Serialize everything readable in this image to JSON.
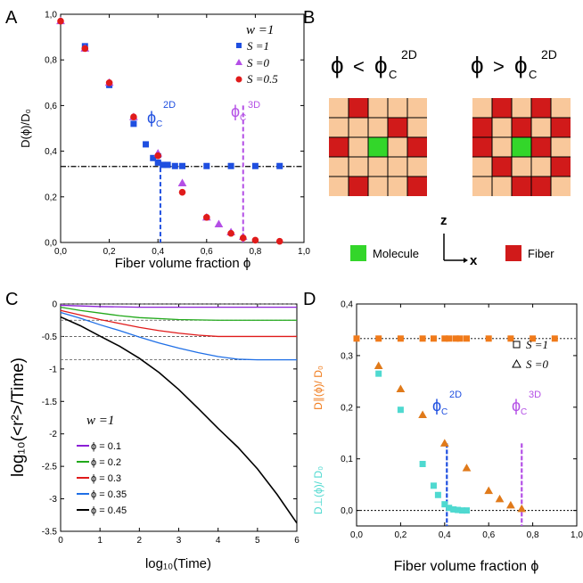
{
  "figure": {
    "panel_labels": {
      "A": "A",
      "B": "B",
      "C": "C",
      "D": "D"
    }
  },
  "chart_data": [
    {
      "panel": "A",
      "type": "scatter",
      "xlabel": "Fiber volume fraction ϕ",
      "ylabel": "D(ϕ)/D₀",
      "xlim": [
        0,
        1
      ],
      "ylim": [
        0,
        1
      ],
      "xticks": [
        "0,0",
        "0,2",
        "0,4",
        "0,6",
        "0,8",
        "1,0"
      ],
      "xtick_values": [
        0,
        0.2,
        0.4,
        0.6,
        0.8,
        1.0
      ],
      "yticks": [
        "0,0",
        "0,2",
        "0,4",
        "0,6",
        "0,8",
        "1,0"
      ],
      "ytick_values": [
        0,
        0.2,
        0.4,
        0.6,
        0.8,
        1.0
      ],
      "legend_title": "w =1",
      "series": [
        {
          "name": "S =1",
          "color": "#1f4fe0",
          "marker": "square",
          "x": [
            0.1,
            0.2,
            0.3,
            0.35,
            0.38,
            0.4,
            0.42,
            0.44,
            0.47,
            0.5,
            0.6,
            0.7,
            0.8,
            0.9
          ],
          "y": [
            0.86,
            0.69,
            0.52,
            0.43,
            0.37,
            0.35,
            0.34,
            0.34,
            0.335,
            0.335,
            0.335,
            0.335,
            0.335,
            0.335
          ]
        },
        {
          "name": "S =0",
          "color": "#b44fe6",
          "marker": "triangle",
          "x": [
            0.0,
            0.1,
            0.2,
            0.3,
            0.4,
            0.5,
            0.6,
            0.65,
            0.7,
            0.75
          ],
          "y": [
            0.97,
            0.85,
            0.7,
            0.55,
            0.39,
            0.26,
            0.11,
            0.08,
            0.045,
            0.025
          ]
        },
        {
          "name": "S =0.5",
          "color": "#e01b1b",
          "marker": "circle",
          "x": [
            0.0,
            0.1,
            0.2,
            0.3,
            0.4,
            0.5,
            0.6,
            0.7,
            0.75,
            0.8,
            0.9
          ],
          "y": [
            0.97,
            0.85,
            0.7,
            0.55,
            0.38,
            0.22,
            0.11,
            0.04,
            0.02,
            0.01,
            0.005
          ]
        }
      ],
      "hline": {
        "y": 0.333,
        "style": "dash-dot",
        "color": "#000000"
      },
      "vlines": [
        {
          "x": 0.41,
          "color": "#1f4fe0",
          "label": "ϕ",
          "sub": "C",
          "sup": "2D"
        },
        {
          "x": 0.75,
          "color": "#b44fe6",
          "label": "ϕ",
          "sub": "C",
          "sup": "3D"
        }
      ]
    },
    {
      "panel": "C",
      "type": "line",
      "xlabel": "log₁₀(Time)",
      "ylabel": "log₁₀(<r²>/Time)",
      "xlim": [
        0,
        6
      ],
      "ylim": [
        -3.5,
        0
      ],
      "xticks": [
        "0",
        "1",
        "2",
        "3",
        "4",
        "5",
        "6"
      ],
      "xtick_values": [
        0,
        1,
        2,
        3,
        4,
        5,
        6
      ],
      "yticks": [
        "-3.5",
        "-3",
        "-2.5",
        "-2",
        "-1.5",
        "-1",
        "-0.5",
        "0"
      ],
      "ytick_values": [
        -3.5,
        -3,
        -2.5,
        -2,
        -1.5,
        -1,
        -0.5,
        0
      ],
      "legend_title": "w =1",
      "series": [
        {
          "name": "ϕ = 0.1",
          "color": "#8b1fd6",
          "x": [
            0,
            0.5,
            1,
            2,
            3,
            4,
            5,
            6
          ],
          "y": [
            -0.02,
            -0.03,
            -0.04,
            -0.05,
            -0.05,
            -0.05,
            -0.05,
            -0.05
          ]
        },
        {
          "name": "ϕ = 0.2",
          "color": "#22a91b",
          "x": [
            0,
            0.5,
            1,
            1.5,
            2,
            3,
            4,
            5,
            6
          ],
          "y": [
            -0.05,
            -0.1,
            -0.14,
            -0.18,
            -0.21,
            -0.24,
            -0.25,
            -0.25,
            -0.25
          ]
        },
        {
          "name": "ϕ = 0.3",
          "color": "#e01b1b",
          "x": [
            0,
            0.5,
            1,
            1.5,
            2,
            2.5,
            3,
            3.5,
            4,
            5,
            6
          ],
          "y": [
            -0.1,
            -0.17,
            -0.24,
            -0.3,
            -0.36,
            -0.41,
            -0.45,
            -0.48,
            -0.5,
            -0.5,
            -0.5
          ]
        },
        {
          "name": "ϕ = 0.35",
          "color": "#1f6fe6",
          "x": [
            0,
            0.5,
            1,
            1.5,
            2,
            2.5,
            3,
            3.5,
            4,
            4.5,
            5,
            6
          ],
          "y": [
            -0.13,
            -0.22,
            -0.32,
            -0.41,
            -0.51,
            -0.6,
            -0.68,
            -0.75,
            -0.81,
            -0.85,
            -0.86,
            -0.86
          ]
        },
        {
          "name": "ϕ = 0.45",
          "color": "#000000",
          "x": [
            0,
            0.5,
            1,
            1.5,
            2,
            2.5,
            3,
            3.5,
            4,
            4.5,
            5,
            5.5,
            6
          ],
          "y": [
            -0.2,
            -0.32,
            -0.48,
            -0.65,
            -0.85,
            -1.07,
            -1.32,
            -1.6,
            -1.9,
            -2.2,
            -2.55,
            -2.95,
            -3.38
          ]
        }
      ],
      "hlines": [
        {
          "y": 0.0,
          "color": "#555555"
        },
        {
          "y": -0.25,
          "color": "#555555"
        },
        {
          "y": -0.5,
          "color": "#555555"
        },
        {
          "y": -0.86,
          "color": "#555555"
        }
      ]
    },
    {
      "panel": "D",
      "type": "scatter",
      "xlabel": "Fiber volume fraction ϕ",
      "ylabel_left": "D⊥(ϕ)/ D₀",
      "ylabel_right": "D∥(ϕ)/ D₀",
      "xlim": [
        0,
        1
      ],
      "ylim": [
        -0.03,
        0.4
      ],
      "xticks": [
        "0,0",
        "0,2",
        "0,4",
        "0,6",
        "0,8",
        "1,0"
      ],
      "xtick_values": [
        0,
        0.2,
        0.4,
        0.6,
        0.8,
        1.0
      ],
      "yticks": [
        "0,0",
        "0,1",
        "0,2",
        "0,3",
        "0,4"
      ],
      "ytick_values": [
        0,
        0.1,
        0.2,
        0.3,
        0.4
      ],
      "legend": [
        {
          "name": "S =1",
          "marker": "square"
        },
        {
          "name": "S =0",
          "marker": "triangle"
        }
      ],
      "series": [
        {
          "name": "D∥ S=1",
          "color": "#f07a1a",
          "marker": "square",
          "x": [
            0,
            0.1,
            0.2,
            0.3,
            0.35,
            0.4,
            0.42,
            0.45,
            0.47,
            0.5,
            0.6,
            0.7,
            0.8,
            0.9
          ],
          "y": [
            0.333,
            0.333,
            0.333,
            0.333,
            0.333,
            0.333,
            0.333,
            0.333,
            0.333,
            0.333,
            0.333,
            0.333,
            0.333,
            0.333
          ]
        },
        {
          "name": "D∥ S=0",
          "color": "#e07a1a",
          "marker": "triangle",
          "x": [
            0.1,
            0.2,
            0.3,
            0.4,
            0.5,
            0.6,
            0.65,
            0.7,
            0.75
          ],
          "y": [
            0.28,
            0.235,
            0.185,
            0.13,
            0.082,
            0.038,
            0.022,
            0.01,
            0.003
          ]
        },
        {
          "name": "D⊥ S=1",
          "color": "#4fd9d0",
          "marker": "square",
          "x": [
            0.1,
            0.2,
            0.3,
            0.35,
            0.37,
            0.4,
            0.42,
            0.44,
            0.46,
            0.48,
            0.5
          ],
          "y": [
            0.265,
            0.195,
            0.09,
            0.048,
            0.03,
            0.012,
            0.005,
            0.002,
            0.001,
            0.0,
            0.0
          ]
        }
      ],
      "hlines": [
        {
          "y": 0.333,
          "color": "#000000"
        },
        {
          "y": 0.0,
          "color": "#000000"
        }
      ],
      "vlines": [
        {
          "x": 0.41,
          "color": "#1f4fe0",
          "label": "ϕ",
          "sub": "C",
          "sup": "2D"
        },
        {
          "x": 0.75,
          "color": "#b44fe6",
          "label": "ϕ",
          "sub": "C",
          "sup": "3D"
        }
      ]
    }
  ],
  "diagram_B": {
    "left_title": {
      "phi": "ϕ",
      "op": "<",
      "c": "ϕ",
      "sub": "C",
      "sup": "2D"
    },
    "right_title": {
      "phi": "ϕ",
      "op": ">",
      "c": "ϕ",
      "sub": "C",
      "sup": "2D"
    },
    "colors": {
      "empty": "#f9c89b",
      "fiber": "#d11a1a",
      "molecule": "#33d62a",
      "line": "#000000"
    },
    "left_grid": [
      [
        0,
        1,
        0,
        0,
        0
      ],
      [
        0,
        0,
        0,
        1,
        0
      ],
      [
        1,
        0,
        2,
        0,
        1
      ],
      [
        0,
        0,
        0,
        0,
        0
      ],
      [
        0,
        1,
        0,
        0,
        1
      ]
    ],
    "right_grid": [
      [
        0,
        1,
        0,
        1,
        0
      ],
      [
        1,
        0,
        1,
        0,
        1
      ],
      [
        1,
        0,
        2,
        1,
        0
      ],
      [
        0,
        1,
        0,
        0,
        1
      ],
      [
        0,
        0,
        1,
        1,
        0
      ]
    ],
    "axis_labels": {
      "z": "z",
      "x": "x"
    },
    "legend": {
      "molecule": "Molecule",
      "fiber": "Fiber"
    }
  }
}
